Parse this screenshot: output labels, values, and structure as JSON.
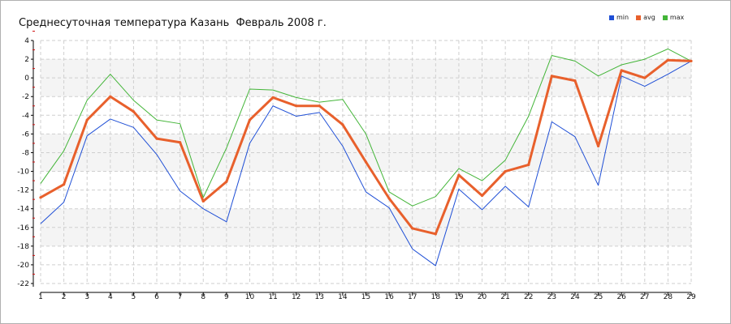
{
  "chart_data": {
    "type": "line",
    "title": "Среднесуточная температура Казань  Февраль 2008 г.",
    "xlabel": "",
    "ylabel": "",
    "x": [
      1,
      2,
      3,
      4,
      5,
      6,
      7,
      8,
      9,
      10,
      11,
      12,
      13,
      14,
      15,
      16,
      17,
      18,
      19,
      20,
      21,
      22,
      23,
      24,
      25,
      26,
      27,
      28,
      29
    ],
    "ylim": [
      -22,
      4
    ],
    "yticks": [
      4,
      2,
      0,
      -2,
      -4,
      -6,
      -8,
      -10,
      -12,
      -14,
      -16,
      -18,
      -20,
      -22
    ],
    "grid": true,
    "legend_position": "top-right",
    "series": [
      {
        "name": "min",
        "color": "#1f4fd6",
        "values": [
          -15.6,
          -13.3,
          -6.2,
          -4.4,
          -5.3,
          -8.2,
          -12.1,
          -14.0,
          -15.4,
          -7.0,
          -3.0,
          -4.1,
          -3.7,
          -7.3,
          -12.2,
          -13.9,
          -18.3,
          -20.1,
          -11.9,
          -14.1,
          -11.6,
          -13.8,
          -4.7,
          -6.3,
          -11.5,
          0.2,
          -0.9,
          0.4,
          1.8
        ]
      },
      {
        "name": "avg",
        "color": "#e8602c",
        "values": [
          -12.8,
          -11.4,
          -4.5,
          -2.0,
          -3.6,
          -6.5,
          -6.9,
          -13.2,
          -11.1,
          -4.5,
          -2.1,
          -3.0,
          -3.0,
          -5.0,
          -9.0,
          -12.9,
          -16.1,
          -16.7,
          -10.4,
          -12.6,
          -10.0,
          -9.3,
          0.2,
          -0.3,
          -7.3,
          0.8,
          0.0,
          1.9,
          1.8
        ]
      },
      {
        "name": "max",
        "color": "#43b538",
        "values": [
          -11.3,
          -7.8,
          -2.4,
          0.4,
          -2.4,
          -4.5,
          -4.9,
          -12.8,
          -7.5,
          -1.2,
          -1.3,
          -2.1,
          -2.6,
          -2.3,
          -6.0,
          -12.2,
          -13.7,
          -12.7,
          -9.7,
          -11.0,
          -8.8,
          -4.1,
          2.4,
          1.8,
          0.2,
          1.4,
          2.0,
          3.1,
          1.8
        ]
      }
    ]
  }
}
